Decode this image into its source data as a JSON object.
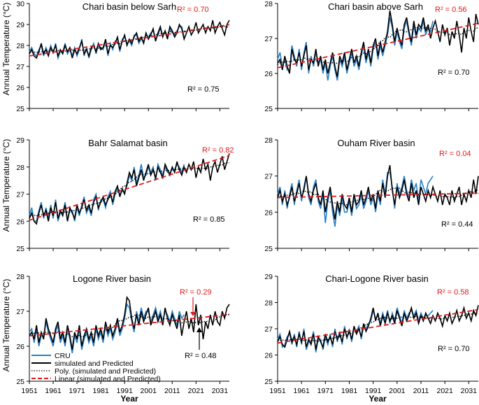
{
  "colors": {
    "cru": "#2a7fc6",
    "simulated": "#000000",
    "poly": "#000000",
    "linear": "#e0191b",
    "r2_red": "#e0191b"
  },
  "labels": {
    "ylabel": "Annual Temperature  (°C)",
    "xlabel": "Year"
  },
  "legend": {
    "entries": [
      "CRU",
      "simulated and Predicted",
      "Poly. (simulated and Predicted)",
      "Linear (simulated and Predicted)"
    ]
  },
  "chart_data": [
    {
      "type": "line",
      "title": "Chari basin below Sarh",
      "ylim": [
        25,
        30
      ],
      "yticks": [
        25,
        26,
        27,
        28,
        29,
        30
      ],
      "xlim": [
        1951,
        2035
      ],
      "xticks": [
        1951,
        1961,
        1971,
        1981,
        1991,
        2001,
        2011,
        2021,
        2031
      ],
      "r2_linear": "R² = 0.70",
      "r2_poly": "R² = 0.75",
      "cru_end": 2016,
      "simulated": [
        27.6,
        27.8,
        27.5,
        27.4,
        27.7,
        28.1,
        27.6,
        27.8,
        27.5,
        27.9,
        27.7,
        28.0,
        27.5,
        27.8,
        27.6,
        28.0,
        27.7,
        27.9,
        27.4,
        27.8,
        27.6,
        27.9,
        28.2,
        27.6,
        27.8,
        27.5,
        27.9,
        28.0,
        27.7,
        28.1,
        27.8,
        27.9,
        28.3,
        27.6,
        28.0,
        27.9,
        28.1,
        28.4,
        27.8,
        28.2,
        28.5,
        28.0,
        28.3,
        28.1,
        28.4,
        28.6,
        28.2,
        28.4,
        28.1,
        28.6,
        28.3,
        28.5,
        28.8,
        28.2,
        28.6,
        28.9,
        28.4,
        28.7,
        28.3,
        28.9,
        28.7,
        28.4,
        28.6,
        29.0,
        28.8,
        28.3,
        28.6,
        28.9,
        28.5,
        28.7,
        29.1,
        28.6,
        28.8,
        29.0,
        28.6,
        28.9,
        28.7,
        29.2,
        28.6,
        28.9,
        29.1,
        28.8,
        28.5,
        29.0,
        29.2
      ],
      "cru": [
        27.7,
        27.9,
        27.6,
        27.5,
        27.8,
        28.0,
        27.5,
        27.9,
        27.6,
        28.0,
        27.6,
        28.1,
        27.4,
        27.7,
        27.7,
        28.1,
        27.6,
        27.8,
        27.5,
        27.9,
        27.5,
        27.8,
        28.3,
        27.5,
        27.9,
        27.4,
        27.8,
        28.1,
        27.6,
        28.0,
        27.9,
        27.8,
        28.2,
        27.5,
        28.1,
        27.8,
        28.2,
        28.3,
        27.7,
        28.3,
        28.4,
        28.1,
        28.2,
        28.0,
        28.5,
        28.5,
        28.1,
        28.3,
        28.2,
        28.5,
        28.4,
        28.6,
        28.7,
        28.3,
        28.5,
        28.8,
        28.5,
        28.6,
        28.4,
        28.8,
        28.6,
        28.5,
        28.7,
        28.9,
        28.9,
        28.4
      ]
    },
    {
      "type": "line",
      "title": "Chari basin above Sarh",
      "ylim": [
        25,
        28
      ],
      "yticks": [
        25,
        26,
        27,
        28
      ],
      "xlim": [
        1951,
        2035
      ],
      "xticks": [
        1951,
        1961,
        1971,
        1981,
        1991,
        2001,
        2011,
        2021,
        2031
      ],
      "r2_linear": "R² = 0.56",
      "r2_poly": "R² = 0.70",
      "cru_end": 2016,
      "simulated": [
        26.3,
        26.4,
        26.1,
        26.5,
        26.2,
        26.0,
        26.7,
        26.4,
        26.3,
        26.6,
        26.2,
        26.5,
        26.8,
        26.1,
        26.4,
        26.3,
        26.7,
        26.2,
        26.5,
        26.1,
        26.4,
        26.0,
        26.3,
        26.6,
        26.2,
        25.9,
        26.5,
        26.3,
        26.6,
        26.1,
        26.4,
        26.7,
        26.3,
        26.5,
        26.2,
        26.6,
        26.9,
        26.4,
        26.7,
        26.3,
        26.8,
        27.0,
        26.5,
        26.9,
        26.6,
        26.9,
        27.2,
        27.8,
        27.4,
        26.9,
        27.3,
        27.0,
        26.8,
        27.4,
        27.6,
        27.2,
        26.9,
        27.5,
        27.1,
        27.4,
        27.3,
        27.6,
        27.2,
        27.4,
        27.0,
        27.3,
        27.5,
        27.2,
        26.9,
        27.4,
        27.1,
        27.3,
        26.8,
        27.2,
        27.0,
        27.5,
        27.1,
        26.6,
        27.3,
        27.0,
        27.6,
        27.2,
        26.9,
        27.7,
        27.4
      ],
      "cru": [
        26.4,
        26.6,
        26.2,
        26.4,
        26.1,
        26.1,
        26.8,
        26.5,
        26.2,
        26.7,
        26.1,
        26.6,
        26.9,
        26.0,
        26.5,
        26.2,
        26.6,
        26.3,
        26.4,
        26.0,
        26.3,
        25.8,
        26.2,
        26.5,
        26.1,
        25.8,
        26.4,
        26.2,
        26.5,
        26.0,
        26.3,
        26.6,
        26.2,
        26.4,
        26.1,
        26.5,
        26.8,
        26.3,
        26.6,
        26.2,
        26.7,
        26.9,
        26.4,
        26.8,
        26.5,
        26.8,
        27.1,
        27.6,
        27.3,
        26.8,
        27.2,
        26.9,
        26.7,
        27.3,
        27.5,
        27.1,
        26.8,
        27.4,
        27.0,
        27.3,
        27.2,
        27.5,
        27.1,
        27.3,
        27.2,
        27.5
      ]
    },
    {
      "type": "line",
      "title": "Bahr Salamat basin",
      "ylim": [
        25,
        29
      ],
      "yticks": [
        25,
        26,
        27,
        28,
        29
      ],
      "xlim": [
        1951,
        2035
      ],
      "xticks": [
        1951,
        1961,
        1971,
        1981,
        1991,
        2001,
        2011,
        2021,
        2031
      ],
      "r2_linear": "R² = 0.82",
      "r2_poly": "R² = 0.85",
      "cru_end": 2016,
      "simulated": [
        26.1,
        26.3,
        26.0,
        25.9,
        26.3,
        26.6,
        26.2,
        26.4,
        26.0,
        26.5,
        26.2,
        26.7,
        26.1,
        26.4,
        26.2,
        26.6,
        26.0,
        26.5,
        26.3,
        26.1,
        26.6,
        26.3,
        26.5,
        26.8,
        26.4,
        26.6,
        26.3,
        26.7,
        26.9,
        26.5,
        26.7,
        26.9,
        26.6,
        26.8,
        27.0,
        26.7,
        27.1,
        27.3,
        26.9,
        27.2,
        27.0,
        27.4,
        27.8,
        27.6,
        27.9,
        27.3,
        27.6,
        27.9,
        27.5,
        27.8,
        28.1,
        27.7,
        27.9,
        27.6,
        28.0,
        27.8,
        27.6,
        28.1,
        27.9,
        27.7,
        28.0,
        27.8,
        28.2,
        27.9,
        27.7,
        28.0,
        27.8,
        28.1,
        27.9,
        28.2,
        27.6,
        28.0,
        27.8,
        28.3,
        27.9,
        28.1,
        27.5,
        28.0,
        28.2,
        27.8,
        28.1,
        28.4,
        27.9,
        28.2,
        28.5
      ],
      "cru": [
        26.2,
        26.5,
        26.0,
        26.0,
        26.4,
        26.7,
        26.1,
        26.5,
        26.1,
        26.6,
        26.1,
        26.8,
        26.0,
        26.3,
        26.3,
        26.7,
        26.0,
        26.4,
        26.4,
        26.0,
        26.5,
        26.2,
        26.6,
        26.9,
        26.3,
        26.5,
        26.2,
        26.8,
        27.0,
        26.4,
        26.8,
        26.8,
        26.5,
        26.9,
        27.1,
        26.6,
        27.0,
        27.2,
        27.0,
        27.1,
        27.1,
        27.3,
        27.7,
        27.5,
        28.0,
        27.4,
        27.7,
        28.1,
        27.6,
        27.7,
        28.0,
        27.8,
        28.0,
        27.5,
        28.1,
        27.9,
        27.7,
        28.0,
        27.8,
        27.8,
        27.9,
        27.9,
        28.1,
        28.0,
        27.8,
        28.1
      ]
    },
    {
      "type": "line",
      "title": "Ouham River basin",
      "ylim": [
        25,
        28
      ],
      "yticks": [
        25,
        26,
        27,
        28
      ],
      "xlim": [
        1951,
        2035
      ],
      "xticks": [
        1951,
        1961,
        1971,
        1981,
        1991,
        2001,
        2011,
        2021,
        2031
      ],
      "r2_linear": "R² = 0.04",
      "r2_poly": "R² = 0.44",
      "cru_end": 2016,
      "simulated": [
        26.4,
        26.6,
        26.3,
        26.5,
        26.2,
        26.4,
        26.7,
        26.3,
        26.5,
        26.8,
        26.4,
        26.6,
        27.0,
        26.5,
        26.3,
        26.6,
        26.8,
        26.4,
        26.2,
        26.6,
        26.0,
        26.4,
        26.7,
        26.2,
        25.8,
        26.3,
        26.0,
        26.5,
        26.2,
        26.1,
        26.4,
        26.0,
        26.5,
        26.2,
        26.3,
        26.6,
        26.2,
        26.4,
        26.7,
        26.3,
        26.5,
        26.1,
        26.6,
        26.3,
        26.8,
        26.4,
        27.0,
        27.3,
        26.6,
        26.2,
        26.7,
        26.4,
        26.6,
        26.9,
        26.5,
        26.3,
        26.8,
        26.4,
        26.6,
        26.2,
        26.7,
        26.5,
        26.3,
        26.6,
        26.4,
        26.7,
        26.5,
        26.3,
        26.6,
        26.2,
        26.5,
        26.4,
        26.2,
        26.6,
        26.3,
        26.5,
        26.7,
        26.2,
        26.5,
        26.3,
        26.6,
        26.4,
        26.9,
        26.5,
        27.0
      ],
      "cru": [
        26.5,
        26.7,
        26.2,
        26.6,
        26.1,
        26.5,
        26.8,
        26.2,
        26.6,
        26.9,
        26.3,
        26.7,
        27.0,
        26.4,
        26.2,
        26.7,
        26.9,
        26.3,
        26.1,
        26.5,
        25.7,
        26.3,
        26.6,
        26.0,
        25.6,
        26.2,
        25.9,
        26.4,
        26.0,
        26.0,
        26.3,
        25.9,
        26.4,
        26.1,
        26.2,
        26.5,
        26.1,
        26.3,
        26.6,
        26.2,
        26.4,
        26.0,
        26.5,
        26.2,
        26.9,
        26.5,
        27.1,
        27.1,
        26.7,
        26.1,
        26.8,
        26.5,
        26.7,
        27.0,
        26.6,
        26.4,
        26.9,
        26.6,
        26.8,
        26.3,
        26.9,
        26.7,
        26.5,
        26.8,
        26.9,
        27.0
      ]
    },
    {
      "type": "line",
      "title": "Logone River basin",
      "ylim": [
        25,
        28
      ],
      "yticks": [
        25,
        26,
        27,
        28
      ],
      "xlim": [
        1951,
        2035
      ],
      "xticks": [
        1951,
        1961,
        1971,
        1981,
        1991,
        2001,
        2011,
        2021,
        2031
      ],
      "r2_linear": "R² = 0.29",
      "r2_poly": "R² = 0.48",
      "cru_end": 2016,
      "simulated": [
        26.3,
        26.4,
        26.2,
        26.6,
        26.1,
        26.4,
        26.2,
        26.8,
        26.5,
        26.3,
        26.1,
        26.5,
        26.7,
        26.2,
        26.4,
        26.1,
        26.6,
        26.3,
        25.9,
        26.4,
        26.2,
        26.6,
        26.0,
        26.3,
        26.5,
        26.2,
        26.4,
        26.1,
        26.6,
        26.3,
        26.5,
        26.2,
        26.7,
        26.4,
        26.6,
        26.3,
        26.5,
        26.8,
        26.4,
        26.6,
        26.9,
        27.4,
        27.3,
        26.8,
        26.5,
        26.9,
        26.6,
        27.0,
        26.7,
        26.9,
        27.1,
        26.6,
        26.8,
        27.0,
        26.7,
        26.9,
        26.6,
        27.1,
        26.8,
        26.6,
        26.9,
        26.7,
        26.5,
        26.9,
        26.3,
        26.7,
        27.0,
        26.5,
        26.8,
        26.4,
        27.2,
        26.6,
        26.9,
        26.2,
        26.7,
        26.5,
        26.9,
        26.6,
        27.0,
        26.7,
        26.6,
        27.0,
        26.8,
        27.1,
        27.2
      ],
      "cru": [
        26.4,
        26.5,
        26.1,
        26.5,
        26.0,
        26.3,
        26.3,
        26.7,
        26.4,
        26.2,
        26.0,
        26.4,
        26.6,
        26.1,
        26.3,
        26.0,
        26.5,
        26.2,
        25.8,
        26.3,
        26.1,
        26.5,
        25.9,
        26.2,
        26.4,
        26.1,
        26.3,
        26.0,
        26.5,
        26.2,
        26.4,
        26.1,
        26.6,
        26.3,
        26.5,
        26.2,
        26.4,
        26.7,
        26.3,
        26.5,
        26.8,
        27.2,
        27.1,
        26.7,
        26.4,
        27.0,
        26.7,
        27.1,
        26.8,
        27.0,
        27.0,
        26.7,
        26.9,
        27.1,
        26.8,
        27.0,
        26.7,
        27.0,
        26.9,
        26.7,
        27.0,
        26.8,
        26.6,
        27.0,
        26.8,
        26.9
      ]
    },
    {
      "type": "line",
      "title": "Chari-Logone River basin",
      "ylim": [
        25,
        29
      ],
      "yticks": [
        25,
        26,
        27,
        28,
        29
      ],
      "xlim": [
        1951,
        2035
      ],
      "xticks": [
        1951,
        1961,
        1971,
        1981,
        1991,
        2001,
        2011,
        2021,
        2031
      ],
      "r2_linear": "R² = 0.58",
      "r2_poly": "R² = 0.70",
      "cru_end": 2016,
      "simulated": [
        26.5,
        26.7,
        26.4,
        26.3,
        26.6,
        26.9,
        26.5,
        26.7,
        26.4,
        26.8,
        26.5,
        26.9,
        26.3,
        26.6,
        26.4,
        26.8,
        26.2,
        26.7,
        26.5,
        26.3,
        26.8,
        26.5,
        26.7,
        26.4,
        26.9,
        26.6,
        26.8,
        26.5,
        27.0,
        26.7,
        26.9,
        26.6,
        27.1,
        26.8,
        27.0,
        26.7,
        27.2,
        26.9,
        27.1,
        27.4,
        27.8,
        27.3,
        27.6,
        27.1,
        27.5,
        27.2,
        27.6,
        27.3,
        27.5,
        27.2,
        27.7,
        27.4,
        27.1,
        27.6,
        27.3,
        27.5,
        27.8,
        27.4,
        27.6,
        27.2,
        27.5,
        27.3,
        27.6,
        27.4,
        27.2,
        27.5,
        27.3,
        27.6,
        27.4,
        27.1,
        27.5,
        27.3,
        27.6,
        27.2,
        27.4,
        27.7,
        27.3,
        27.5,
        27.8,
        27.4,
        27.6,
        27.3,
        27.7,
        27.5,
        27.9
      ],
      "cru": [
        26.6,
        26.8,
        26.3,
        26.4,
        26.7,
        26.8,
        26.4,
        26.8,
        26.3,
        26.9,
        26.4,
        27.0,
        26.2,
        26.5,
        26.5,
        26.9,
        26.1,
        26.6,
        26.6,
        26.2,
        26.7,
        26.4,
        26.8,
        26.3,
        27.0,
        26.5,
        26.9,
        26.4,
        27.1,
        26.6,
        27.0,
        26.5,
        27.0,
        26.9,
        27.1,
        26.6,
        27.1,
        27.0,
        27.2,
        27.3,
        27.7,
        27.4,
        27.5,
        27.2,
        27.6,
        27.3,
        27.7,
        27.2,
        27.6,
        27.3,
        27.8,
        27.5,
        27.2,
        27.7,
        27.4,
        27.6,
        27.7,
        27.5,
        27.7,
        27.3,
        27.6,
        27.4,
        27.5,
        27.5,
        27.6,
        27.7
      ]
    }
  ]
}
